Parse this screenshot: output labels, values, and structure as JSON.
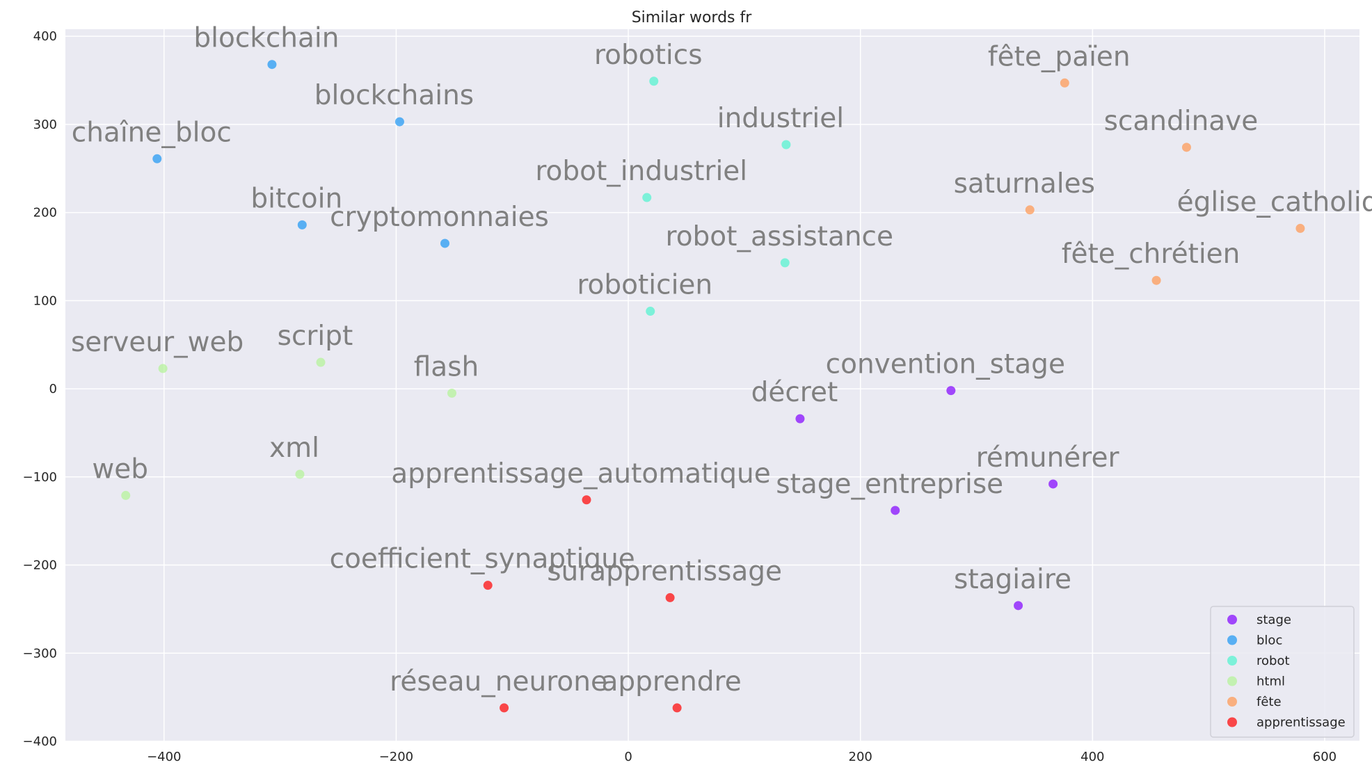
{
  "chart_data": {
    "type": "scatter",
    "title": "Similar words fr",
    "xlabel": "",
    "ylabel": "",
    "xlim": [
      -485,
      630
    ],
    "ylim": [
      -400,
      408
    ],
    "xticks": [
      {
        "value": -400,
        "label": "−400"
      },
      {
        "value": -200,
        "label": "−200"
      },
      {
        "value": 0,
        "label": "0"
      },
      {
        "value": 200,
        "label": "200"
      },
      {
        "value": 400,
        "label": "400"
      },
      {
        "value": 600,
        "label": "600"
      }
    ],
    "yticks": [
      {
        "value": 400,
        "label": "400"
      },
      {
        "value": 300,
        "label": "300"
      },
      {
        "value": 200,
        "label": "200"
      },
      {
        "value": 100,
        "label": "100"
      },
      {
        "value": 0,
        "label": "0"
      },
      {
        "value": -100,
        "label": "−100"
      },
      {
        "value": -200,
        "label": "−200"
      },
      {
        "value": -300,
        "label": "−300"
      },
      {
        "value": -400,
        "label": "−400"
      }
    ],
    "grid": true,
    "background": "#eaeaf2",
    "legend_position": "lower-right",
    "series": [
      {
        "name": "stage",
        "color": "#8000ff",
        "points": [
          {
            "label": "convention_stage",
            "x": 278,
            "y": -2
          },
          {
            "label": "décret",
            "x": 148,
            "y": -34
          },
          {
            "label": "rémunérer",
            "x": 366,
            "y": -108
          },
          {
            "label": "stage_entreprise",
            "x": 230,
            "y": -138
          },
          {
            "label": "stagiaire",
            "x": 336,
            "y": -246
          }
        ]
      },
      {
        "name": "bloc",
        "color": "#1996f3",
        "points": [
          {
            "label": "blockchain",
            "x": -307,
            "y": 368
          },
          {
            "label": "blockchains",
            "x": -197,
            "y": 303
          },
          {
            "label": "chaîne_bloc",
            "x": -406,
            "y": 261
          },
          {
            "label": "bitcoin",
            "x": -281,
            "y": 186
          },
          {
            "label": "cryptomonnaies",
            "x": -158,
            "y": 165
          }
        ]
      },
      {
        "name": "robot",
        "color": "#4df3ce",
        "points": [
          {
            "label": "robotics",
            "x": 22,
            "y": 349
          },
          {
            "label": "industriel",
            "x": 136,
            "y": 277
          },
          {
            "label": "robot_industriel",
            "x": 16,
            "y": 217
          },
          {
            "label": "robot_assistance",
            "x": 135,
            "y": 143
          },
          {
            "label": "roboticien",
            "x": 19,
            "y": 88
          }
        ]
      },
      {
        "name": "html",
        "color": "#b2f396",
        "points": [
          {
            "label": "serveur_web",
            "x": -401,
            "y": 23
          },
          {
            "label": "script",
            "x": -265,
            "y": 30
          },
          {
            "label": "flash",
            "x": -152,
            "y": -5
          },
          {
            "label": "xml",
            "x": -283,
            "y": -97
          },
          {
            "label": "web",
            "x": -433,
            "y": -121
          }
        ]
      },
      {
        "name": "fête",
        "color": "#ff964f",
        "points": [
          {
            "label": "fête_païen",
            "x": 376,
            "y": 347
          },
          {
            "label": "scandinave",
            "x": 481,
            "y": 274
          },
          {
            "label": "saturnales",
            "x": 346,
            "y": 203
          },
          {
            "label": "église_catholique",
            "x": 579,
            "y": 182
          },
          {
            "label": "fête_chrétien",
            "x": 455,
            "y": 123
          }
        ]
      },
      {
        "name": "apprentissage",
        "color": "#ff0000",
        "points": [
          {
            "label": "apprentissage_automatique",
            "x": -36,
            "y": -126
          },
          {
            "label": "coefficient_synaptique",
            "x": -121,
            "y": -223
          },
          {
            "label": "surapprentissage",
            "x": 36,
            "y": -237
          },
          {
            "label": "réseau_neurone",
            "x": -107,
            "y": -362
          },
          {
            "label": "apprendre",
            "x": 42,
            "y": -362
          }
        ]
      }
    ]
  }
}
